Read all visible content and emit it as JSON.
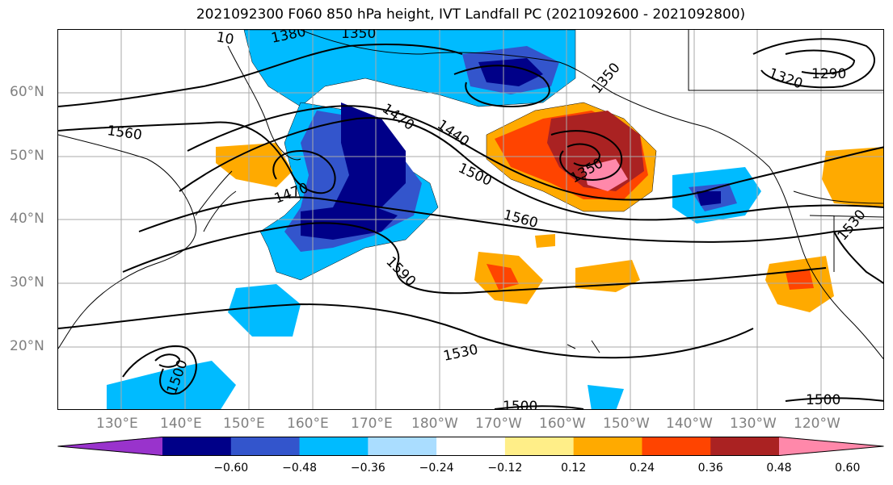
{
  "title": "2021092300 F060 850 hPa height, IVT Landfall PC (2021092600 - 2021092800)",
  "map": {
    "lon_labels": [
      "130°E",
      "140°E",
      "150°E",
      "160°E",
      "170°E",
      "180°W",
      "170°W",
      "160°W",
      "150°W",
      "140°W",
      "130°W",
      "120°W"
    ],
    "lat_labels": [
      "60°N",
      "50°N",
      "40°N",
      "30°N",
      "20°N"
    ],
    "lon_range_deg_east": [
      122.5,
      252.5
    ],
    "lat_range_deg_north": [
      10,
      70
    ],
    "grid": true,
    "contour_labels": [
      "10",
      "1380",
      "1350",
      "1350",
      "1290",
      "1320",
      "1470",
      "1440",
      "1560",
      "1500",
      "1350",
      "1470",
      "1560",
      "1590",
      "1530",
      "1500",
      "1530",
      "1500",
      "1500"
    ]
  },
  "colorbar": {
    "colors": [
      "#9933cc",
      "#000088",
      "#3355cc",
      "#00bbff",
      "#aaddff",
      "#ffffff",
      "#ffee88",
      "#ffaa00",
      "#ff4400",
      "#aa2222",
      "#ff88aa"
    ],
    "tick_labels": [
      "−0.60",
      "−0.48",
      "−0.36",
      "−0.24",
      "−0.12",
      "0.12",
      "0.24",
      "0.36",
      "0.48",
      "0.60"
    ]
  }
}
